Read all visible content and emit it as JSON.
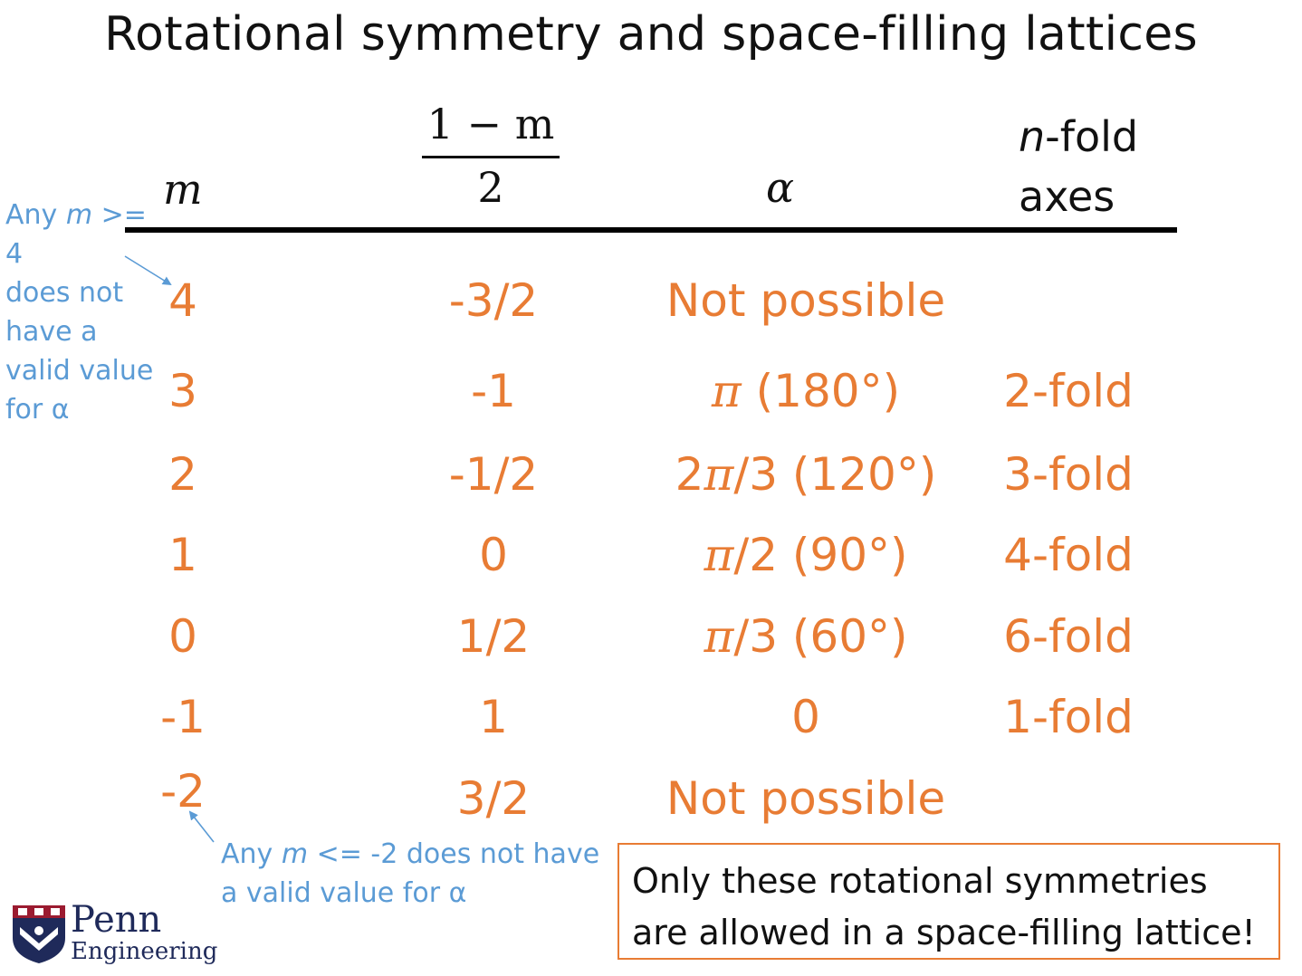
{
  "title": "Rotational symmetry and space-filling lattices",
  "header": {
    "m": "m",
    "frac_num": "1 − m",
    "frac_den": "2",
    "alpha": "α",
    "n_italic": "n",
    "n_rest": "-fold",
    "n_line2": "axes"
  },
  "rows": [
    {
      "m": "4",
      "frac": "-3/2",
      "alpha": "Not possible",
      "nfold": ""
    },
    {
      "m": "3",
      "frac": "-1",
      "alpha_pi": "π",
      "alpha_rest": " (180°)",
      "nfold": "2-fold"
    },
    {
      "m": "2",
      "frac": "-1/2",
      "alpha_pre": "2",
      "alpha_pi": "π",
      "alpha_rest": "/3 (120°)",
      "nfold": "3-fold"
    },
    {
      "m": "1",
      "frac": "0",
      "alpha_pi": "π",
      "alpha_rest": "/2 (90°)",
      "nfold": "4-fold"
    },
    {
      "m": "0",
      "frac": "1/2",
      "alpha_pi": "π",
      "alpha_rest": "/3 (60°)",
      "nfold": "6-fold"
    },
    {
      "m": "-1",
      "frac": "1",
      "alpha": "0",
      "nfold": "1-fold"
    },
    {
      "m": "-2",
      "frac": "3/2",
      "alpha": "Not possible",
      "nfold": ""
    }
  ],
  "notes": {
    "upper": {
      "l1_pre": "Any ",
      "l1_m": "m",
      "l1_post": " >= 4",
      "l2": "does not",
      "l3": "have a",
      "l4": "valid value",
      "l5": "for α"
    },
    "lower": {
      "l1_pre": "Any ",
      "l1_m": "m",
      "l1_post": " <= -2 does not have",
      "l2": "a valid value for α"
    }
  },
  "box": {
    "line1": "Only these rotational symmetries",
    "line2": "are allowed in a space-filling lattice!"
  },
  "logo": {
    "word1": "Penn",
    "word2": "Engineering"
  },
  "colors": {
    "accent": "#e87c34",
    "note": "#5b9bd5",
    "logo": "#1f2a5a"
  }
}
